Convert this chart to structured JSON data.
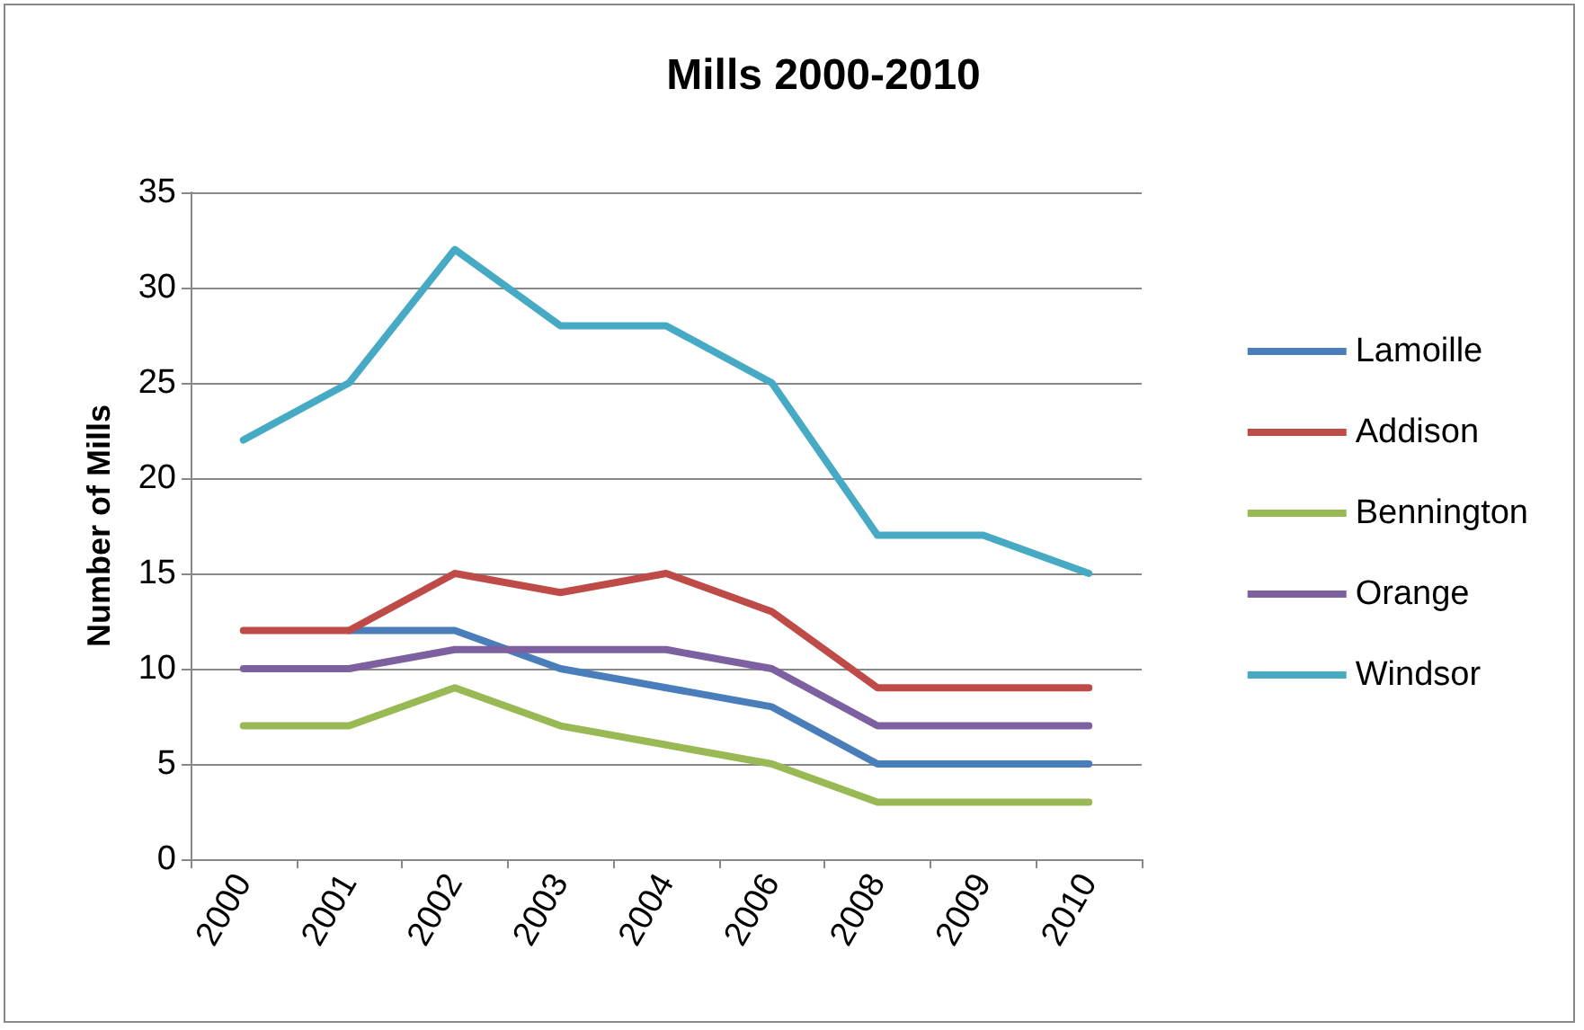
{
  "chart_data": {
    "type": "line",
    "title": "Mills 2000-2010",
    "ylabel": "Number of Mills",
    "categories": [
      "2000",
      "2001",
      "2002",
      "2003",
      "2004",
      "2006",
      "2008",
      "2009",
      "2010"
    ],
    "series": [
      {
        "name": "Lamoille",
        "color": "#4a7ebb",
        "values": [
          null,
          12,
          12,
          10,
          9,
          8,
          5,
          5,
          5
        ]
      },
      {
        "name": "Addison",
        "color": "#be4b48",
        "values": [
          12,
          12,
          15,
          14,
          15,
          13,
          9,
          9,
          9
        ]
      },
      {
        "name": "Bennington",
        "color": "#98b954",
        "values": [
          7,
          7,
          9,
          7,
          6,
          5,
          3,
          3,
          3
        ]
      },
      {
        "name": "Orange",
        "color": "#7d60a0",
        "values": [
          10,
          10,
          11,
          11,
          11,
          10,
          7,
          7,
          7
        ]
      },
      {
        "name": "Windsor",
        "color": "#46aac5",
        "values": [
          22,
          25,
          32,
          28,
          28,
          25,
          17,
          17,
          15
        ]
      }
    ],
    "ylim": [
      0,
      35
    ],
    "yticks": [
      0,
      5,
      10,
      15,
      20,
      25,
      30,
      35
    ],
    "grid": "y",
    "legend": "right",
    "marker": "none",
    "line_style": "solid"
  }
}
